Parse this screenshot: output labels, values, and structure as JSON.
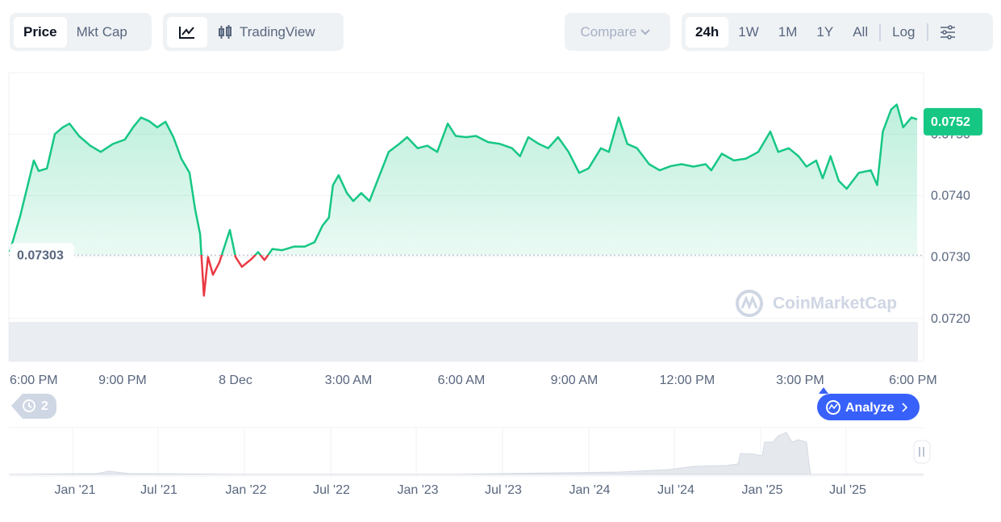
{
  "toolbar": {
    "tabs": [
      "Price",
      "Mkt Cap"
    ],
    "tradingview": "TradingView",
    "compare": "Compare",
    "ranges": [
      "24h",
      "1W",
      "1M",
      "1Y",
      "All"
    ],
    "log": "Log"
  },
  "history_count": "2",
  "analyze": "Analyze",
  "watermark": "CoinMarketCap",
  "chart_data": {
    "type": "line",
    "x": [
      0,
      0.28,
      0.64,
      0.77,
      0.99,
      1.2,
      1.41,
      1.59,
      1.84,
      2.14,
      2.42,
      2.74,
      3.06,
      3.28,
      3.49,
      3.71,
      3.92,
      4.14,
      4.35,
      4.56,
      4.78,
      4.93,
      5.06,
      5.16,
      5.27,
      5.4,
      5.57,
      5.85,
      6.0,
      6.17,
      6.43,
      6.6,
      6.77,
      6.98,
      7.24,
      7.56,
      7.84,
      8.1,
      8.31,
      8.48,
      8.59,
      8.74,
      8.96,
      9.13,
      9.34,
      9.56,
      9.77,
      10.07,
      10.35,
      10.56,
      10.84,
      11.1,
      11.36,
      11.64,
      11.85,
      12.13,
      12.39,
      12.71,
      13.03,
      13.35,
      13.56,
      13.78,
      14.06,
      14.31,
      14.57,
      14.85,
      15.13,
      15.38,
      15.71,
      15.92,
      16.18,
      16.41,
      16.67,
      16.99,
      17.27,
      17.57,
      17.85,
      18.17,
      18.49,
      18.64,
      18.92,
      19.24,
      19.56,
      19.89,
      20.21,
      20.42,
      20.7,
      20.96,
      21.17,
      21.43,
      21.6,
      21.81,
      22.03,
      22.24,
      22.56,
      22.88,
      23.05,
      23.2,
      23.42,
      23.57,
      23.74,
      23.96,
      24.11
    ],
    "series": [
      {
        "name": "Price",
        "color": "#16c784",
        "below_color": "#ea3943",
        "values": [
          0.07308,
          0.07367,
          0.07457,
          0.0744,
          0.07444,
          0.075,
          0.07511,
          0.07517,
          0.07497,
          0.07481,
          0.07471,
          0.07484,
          0.07491,
          0.07511,
          0.07527,
          0.07521,
          0.07511,
          0.0752,
          0.07495,
          0.0746,
          0.07437,
          0.07377,
          0.07337,
          0.07237,
          0.073,
          0.07271,
          0.07291,
          0.07344,
          0.073,
          0.07284,
          0.07297,
          0.07308,
          0.07295,
          0.07313,
          0.07311,
          0.07317,
          0.07317,
          0.07324,
          0.07351,
          0.07364,
          0.07417,
          0.07433,
          0.07404,
          0.07391,
          0.07404,
          0.07391,
          0.07424,
          0.07471,
          0.07484,
          0.07495,
          0.07477,
          0.07481,
          0.07471,
          0.07517,
          0.07497,
          0.07495,
          0.07497,
          0.07487,
          0.07484,
          0.07477,
          0.07464,
          0.07495,
          0.07484,
          0.07477,
          0.07495,
          0.07471,
          0.07437,
          0.07444,
          0.07477,
          0.07471,
          0.07527,
          0.07484,
          0.07477,
          0.07451,
          0.07441,
          0.07448,
          0.07451,
          0.07447,
          0.07451,
          0.07441,
          0.07468,
          0.07457,
          0.0746,
          0.07471,
          0.07504,
          0.07471,
          0.07477,
          0.07464,
          0.07447,
          0.07457,
          0.07428,
          0.07464,
          0.07424,
          0.07411,
          0.07437,
          0.07441,
          0.07417,
          0.07504,
          0.0754,
          0.07548,
          0.07511,
          0.07527,
          0.07524
        ]
      }
    ],
    "xlim": [
      0,
      24.11
    ],
    "xticks": [
      {
        "value": 0,
        "label": "6:00 PM"
      },
      {
        "value": 3,
        "label": "9:00 PM"
      },
      {
        "value": 6,
        "label": "8 Dec"
      },
      {
        "value": 9,
        "label": "3:00 AM"
      },
      {
        "value": 12,
        "label": "6:00 AM"
      },
      {
        "value": 15,
        "label": "9:00 AM"
      },
      {
        "value": 18,
        "label": "12:00 PM"
      },
      {
        "value": 21,
        "label": "3:00 PM"
      },
      {
        "value": 24,
        "label": "6:00 PM"
      }
    ],
    "ylim": [
      0.0713,
      0.076
    ],
    "yticks": [
      {
        "value": 0.072,
        "label": "0.0720"
      },
      {
        "value": 0.073,
        "label": "0.0730"
      },
      {
        "value": 0.074,
        "label": "0.0740"
      },
      {
        "value": 0.075,
        "label": "0.0750"
      }
    ],
    "grid": true,
    "reference": {
      "value": 0.07303,
      "label": "0.07303"
    },
    "price_tag": {
      "value": 0.0752,
      "label": "0.0752"
    }
  },
  "navigator": {
    "labels": [
      "Jan '21",
      "Jul '21",
      "Jan '22",
      "Jul '22",
      "Jan '23",
      "Jul '23",
      "Jan '24",
      "Jul '24",
      "Jan '25",
      "Jul '25"
    ]
  }
}
